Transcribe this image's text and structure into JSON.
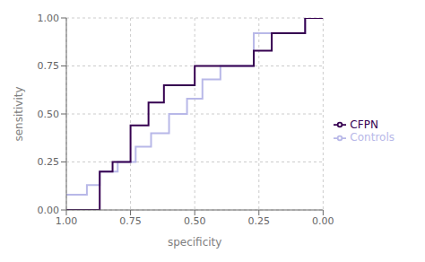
{
  "chart_data": {
    "type": "line",
    "xlabel": "specificity",
    "ylabel": "sensitivity",
    "xlim": [
      1.0,
      0.0
    ],
    "ylim": [
      0.0,
      1.0
    ],
    "xticks": [
      {
        "value": 1.0,
        "label": "1.00"
      },
      {
        "value": 0.75,
        "label": "0.75"
      },
      {
        "value": 0.5,
        "label": "0.50"
      },
      {
        "value": 0.25,
        "label": "0.25"
      },
      {
        "value": 0.0,
        "label": "0.00"
      }
    ],
    "yticks": [
      {
        "value": 0.0,
        "label": "0.00"
      },
      {
        "value": 0.25,
        "label": "0.25"
      },
      {
        "value": 0.5,
        "label": "0.50"
      },
      {
        "value": 0.75,
        "label": "0.75"
      },
      {
        "value": 1.0,
        "label": "1.00"
      }
    ],
    "grid": true,
    "legend": "right",
    "series": [
      {
        "name": "Controls",
        "color": "#B8B8E8",
        "x": [
          1.0,
          0.92,
          0.92,
          0.87,
          0.87,
          0.8,
          0.8,
          0.73,
          0.73,
          0.67,
          0.67,
          0.6,
          0.6,
          0.53,
          0.53,
          0.47,
          0.47,
          0.4,
          0.4,
          0.27,
          0.27,
          0.13,
          0.13,
          0.07,
          0.07,
          0.0
        ],
        "values": [
          0.08,
          0.08,
          0.13,
          0.13,
          0.2,
          0.2,
          0.25,
          0.25,
          0.33,
          0.33,
          0.4,
          0.4,
          0.5,
          0.5,
          0.58,
          0.58,
          0.68,
          0.68,
          0.75,
          0.75,
          0.92,
          0.92,
          0.92,
          0.92,
          1.0,
          1.0
        ]
      },
      {
        "name": "CFPN",
        "color": "#350050",
        "x": [
          1.0,
          0.87,
          0.87,
          0.82,
          0.82,
          0.75,
          0.75,
          0.68,
          0.68,
          0.62,
          0.62,
          0.5,
          0.5,
          0.27,
          0.27,
          0.2,
          0.2,
          0.07,
          0.07,
          0.0
        ],
        "values": [
          0.0,
          0.0,
          0.2,
          0.2,
          0.25,
          0.25,
          0.44,
          0.44,
          0.56,
          0.56,
          0.65,
          0.65,
          0.75,
          0.75,
          0.83,
          0.83,
          0.92,
          0.92,
          1.0,
          1.0
        ]
      }
    ]
  }
}
